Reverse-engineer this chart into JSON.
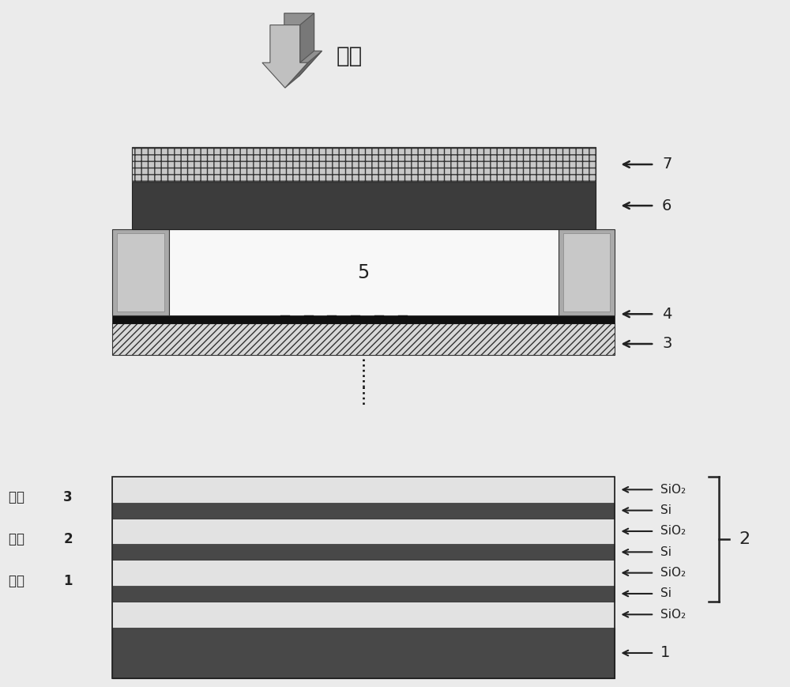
{
  "bg_color": "#ebebeb",
  "sio2_color": "#e0e0e0",
  "si_color": "#4a4a4a",
  "dark_layer": "#484848",
  "light_layer": "#e2e2e2",
  "hatch_layer": "#d8d8d8",
  "black": "#111111",
  "pillar_outer": "#aaaaaa",
  "pillar_inner": "#c8c8c8",
  "cavity_color": "#f8f8f8",
  "layer6_color": "#3c3c3c",
  "layer7_color": "#d0d0d0",
  "photon_text": "光子",
  "label1": "1",
  "label2": "2",
  "label3": "3",
  "label4": "4",
  "label5": "5",
  "label6": "6",
  "label7": "7",
  "period1": "周期",
  "period2": "周期",
  "period3": "周期",
  "sio2": "SiO₂",
  "si": "Si",
  "bold1": "1",
  "bold2": "2",
  "bold3": "3"
}
